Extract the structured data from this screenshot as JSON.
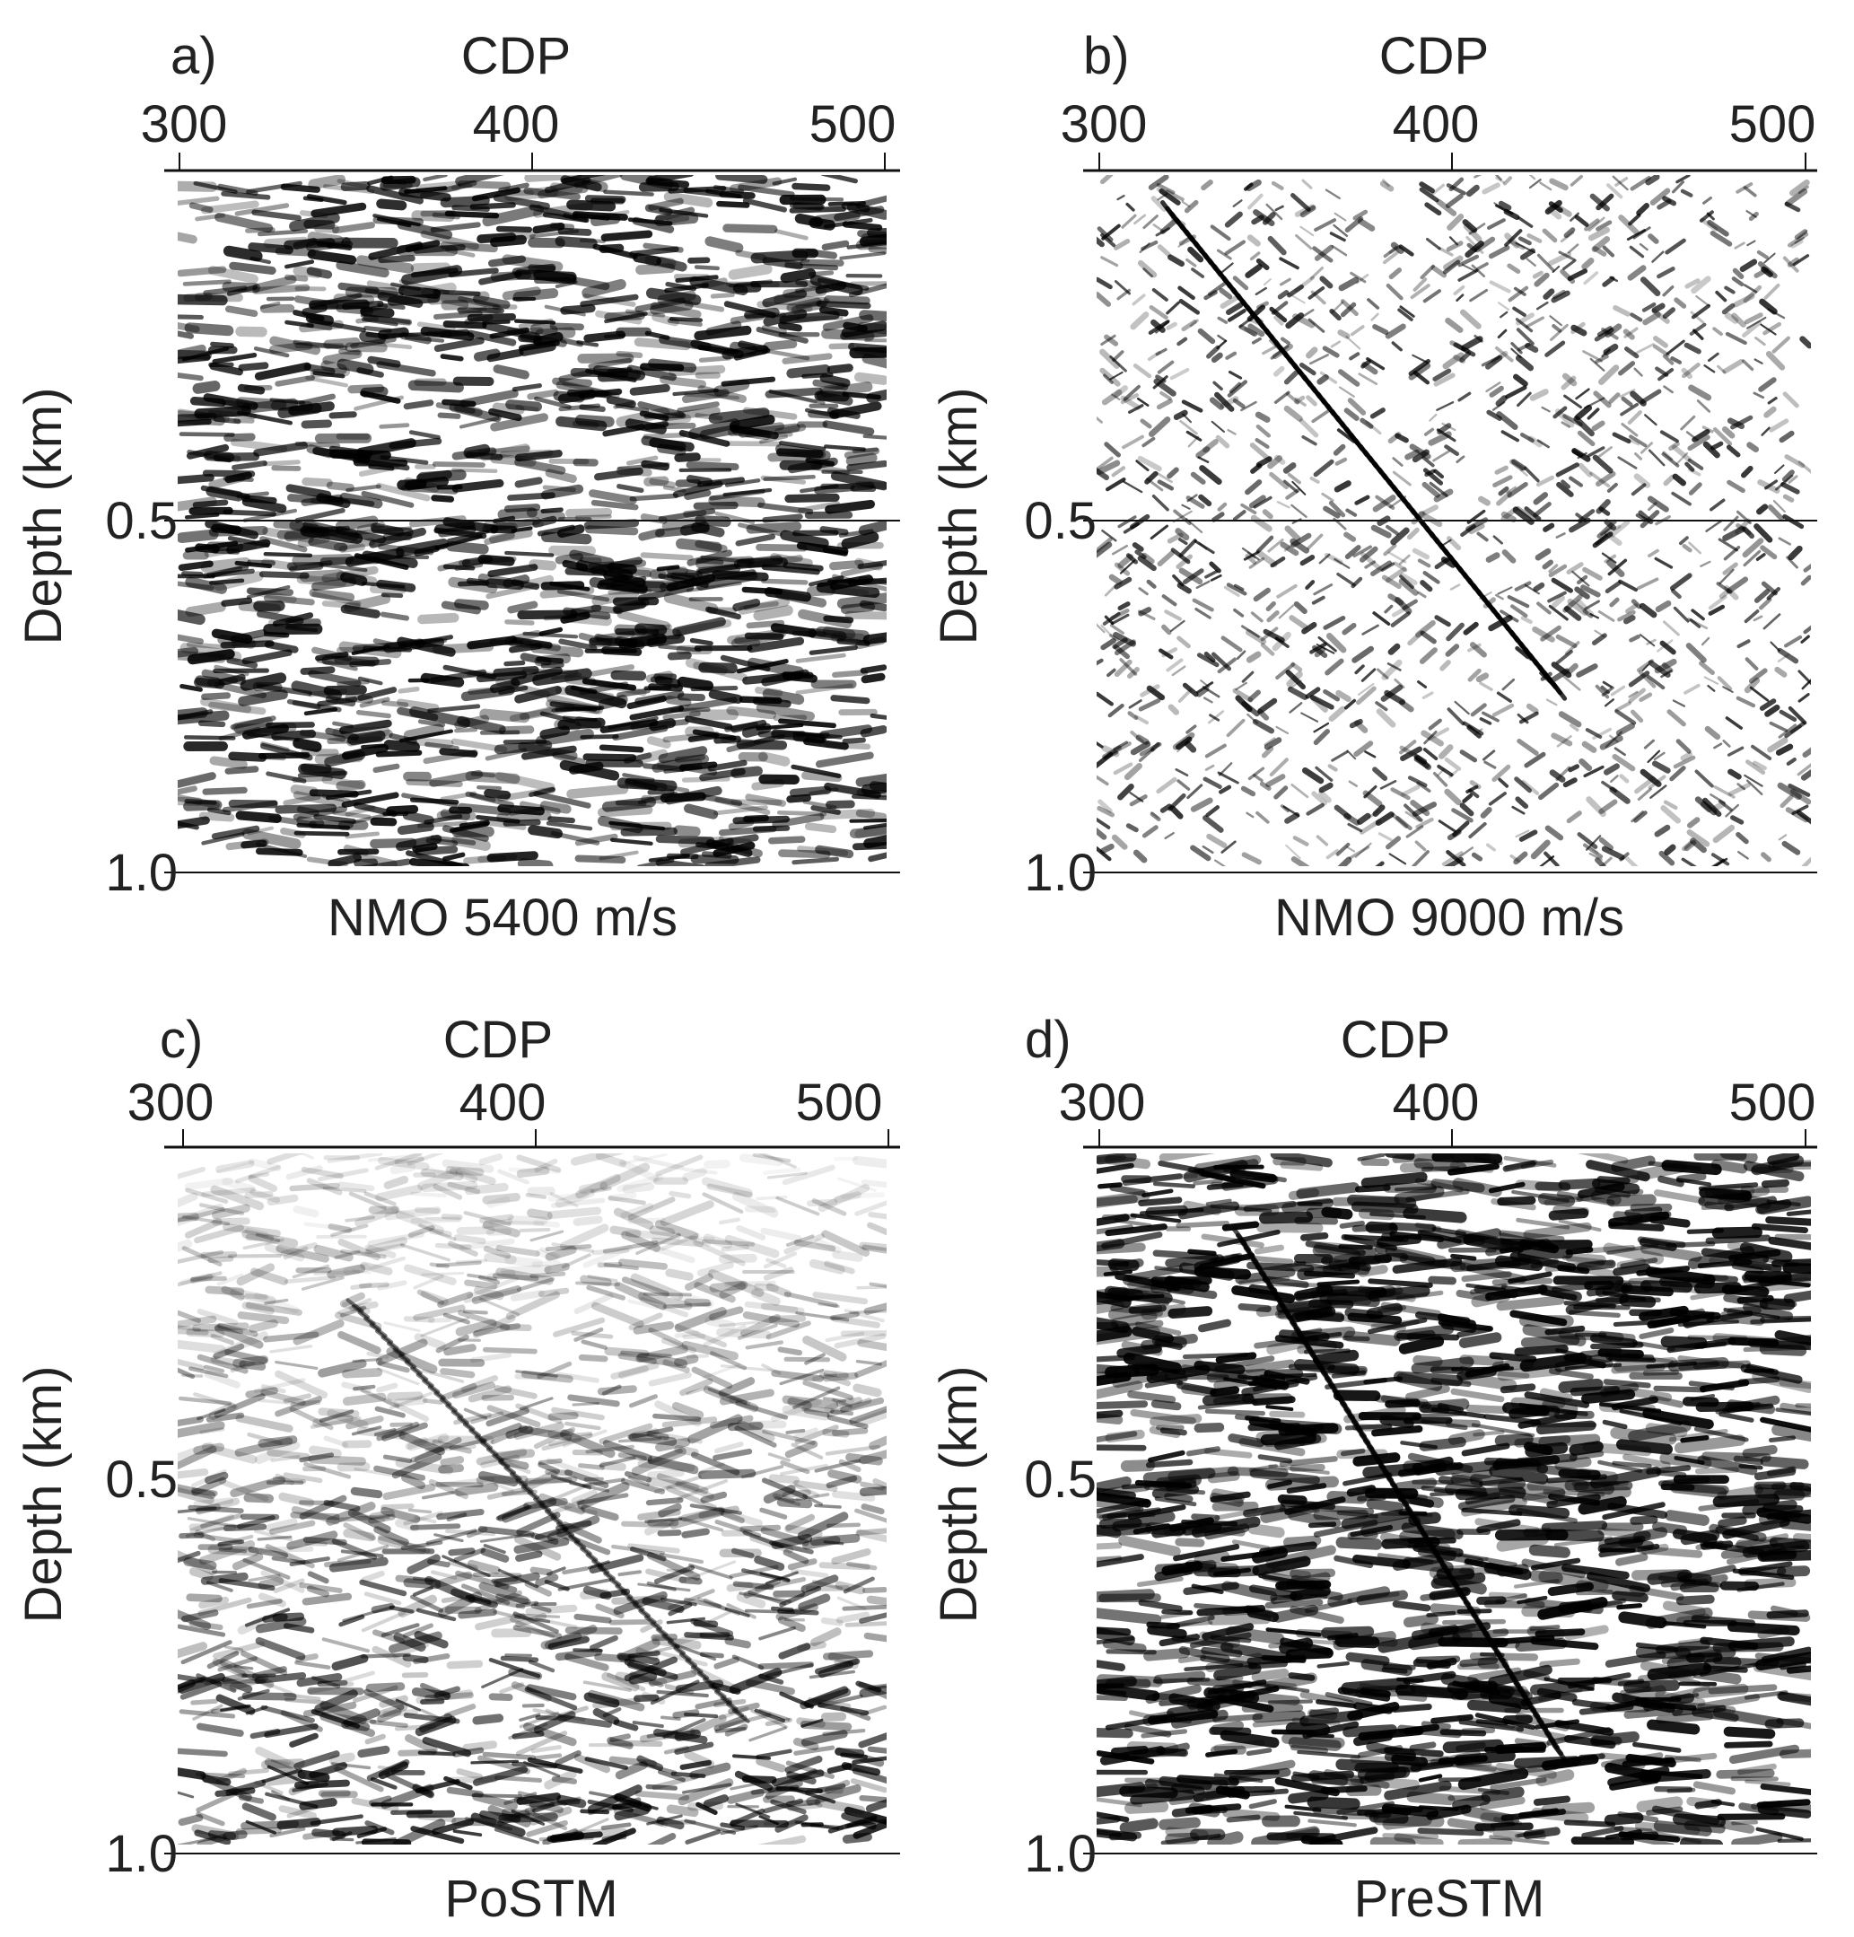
{
  "panels": [
    {
      "id": "a",
      "letter": "a)",
      "top_label": "CDP",
      "x_ticks": [
        "300",
        "400",
        "500"
      ],
      "y_ticks": [
        "0.5",
        "1.0"
      ],
      "y_label": "Depth (km)",
      "caption": "NMO 5400 m/s",
      "texture": "horizontal"
    },
    {
      "id": "b",
      "letter": "b)",
      "top_label": "CDP",
      "x_ticks": [
        "300",
        "400",
        "500"
      ],
      "y_ticks": [
        "0.5",
        "1.0"
      ],
      "y_label": "Depth (km)",
      "caption": "NMO 9000 m/s",
      "texture": "crosshatch"
    },
    {
      "id": "c",
      "letter": "c)",
      "top_label": "CDP",
      "x_ticks": [
        "300",
        "400",
        "500"
      ],
      "y_ticks": [
        "0.5",
        "1.0"
      ],
      "y_label": "Depth (km)",
      "caption": "PoSTM",
      "texture": "postm"
    },
    {
      "id": "d",
      "letter": "d)",
      "top_label": "CDP",
      "x_ticks": [
        "300",
        "400",
        "500"
      ],
      "y_ticks": [
        "0.5",
        "1.0"
      ],
      "y_label": "Depth (km)",
      "caption": "PreSTM",
      "texture": "prestm"
    }
  ]
}
